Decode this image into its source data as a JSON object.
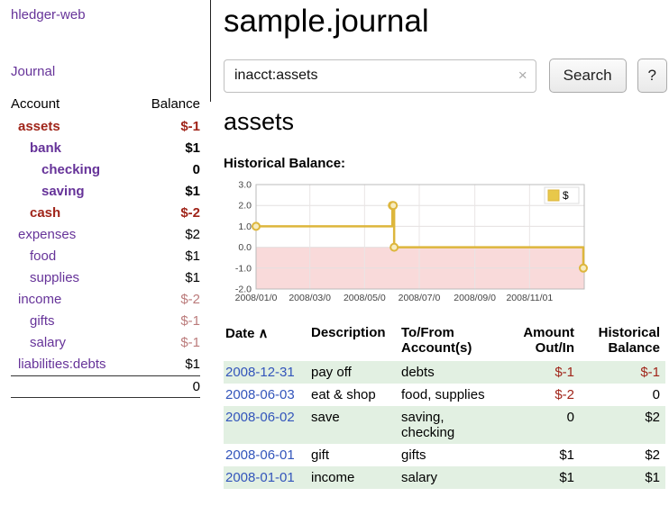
{
  "colors": {
    "purple": "#663399",
    "link_blue": "#3355BB",
    "negative": "#A0251A",
    "muted_negative": "#BB7B7B",
    "row_green": "#E2F0E2",
    "chart_line": "#DDB63C",
    "chart_marker_fill": "#F7ECC0",
    "chart_legend_fill": "#E8C84A",
    "chart_negative_zone": "#F9DADA"
  },
  "icons": {
    "clear": "×",
    "sort_asc": "∧"
  },
  "app": {
    "title": "hledger-web"
  },
  "sidebar": {
    "journal_link": "Journal",
    "accounts": {
      "headers": {
        "account": "Account",
        "balance": "Balance"
      },
      "rows": [
        {
          "name": "assets",
          "balance": "$-1"
        },
        {
          "name": "bank",
          "balance": "$1"
        },
        {
          "name": "checking",
          "balance": "0"
        },
        {
          "name": "saving",
          "balance": "$1"
        },
        {
          "name": "cash",
          "balance": "$-2"
        },
        {
          "name": "expenses",
          "balance": "$2"
        },
        {
          "name": "food",
          "balance": "$1"
        },
        {
          "name": "supplies",
          "balance": "$1"
        },
        {
          "name": "income",
          "balance": "$-2"
        },
        {
          "name": "gifts",
          "balance": "$-1"
        },
        {
          "name": "salary",
          "balance": "$-1"
        },
        {
          "name": "liabilities:debts",
          "balance": "$1"
        }
      ],
      "total": "0"
    }
  },
  "main": {
    "title": "sample.journal",
    "search": {
      "value": "inacct:assets",
      "button_label": "Search",
      "help_label": "?"
    },
    "heading": "assets",
    "chart_title": "Historical Balance:"
  },
  "chart_data": {
    "type": "line",
    "step": true,
    "title": "Historical Balance",
    "legend": [
      {
        "label": "$"
      }
    ],
    "legend_position": "top-right",
    "grid": true,
    "ylim": [
      -2,
      3
    ],
    "y_ticks": [
      3.0,
      2.0,
      1.0,
      0.0,
      -1.0,
      -2.0
    ],
    "x_domain": [
      "2008-01-01",
      "2009-01-01"
    ],
    "x_ticks": [
      "2008-01-01",
      "2008-03-01",
      "2008-05-01",
      "2008-07-01",
      "2008-09-01",
      "2008-11-01"
    ],
    "x_tick_labels": [
      "2008/01/0",
      "2008/03/0",
      "2008/05/0",
      "2008/07/0",
      "2008/09/0",
      "2008/11/01"
    ],
    "series": [
      {
        "name": "$",
        "points": [
          {
            "x": "2008-01-01",
            "y": 1
          },
          {
            "x": "2008-06-01",
            "y": 2
          },
          {
            "x": "2008-06-02",
            "y": 2
          },
          {
            "x": "2008-06-03",
            "y": 0
          },
          {
            "x": "2008-12-31",
            "y": -1
          }
        ]
      }
    ]
  },
  "register": {
    "headers": {
      "date": "Date",
      "description": "Description",
      "accounts_line1": "To/From",
      "accounts_line2": "Account(s)",
      "amount_line1": "Amount",
      "amount_line2": "Out/In",
      "balance_line1": "Historical",
      "balance_line2": "Balance"
    },
    "rows": [
      {
        "date": "2008-12-31",
        "description": "pay off",
        "accounts": "debts",
        "amount": "$-1",
        "balance": "$-1"
      },
      {
        "date": "2008-06-03",
        "description": "eat & shop",
        "accounts": "food, supplies",
        "amount": "$-2",
        "balance": "0"
      },
      {
        "date": "2008-06-02",
        "description": "save",
        "accounts": "saving, checking",
        "amount": "0",
        "balance": "$2"
      },
      {
        "date": "2008-06-01",
        "description": "gift",
        "accounts": "gifts",
        "amount": "$1",
        "balance": "$2"
      },
      {
        "date": "2008-01-01",
        "description": "income",
        "accounts": "salary",
        "amount": "$1",
        "balance": "$1"
      }
    ]
  }
}
